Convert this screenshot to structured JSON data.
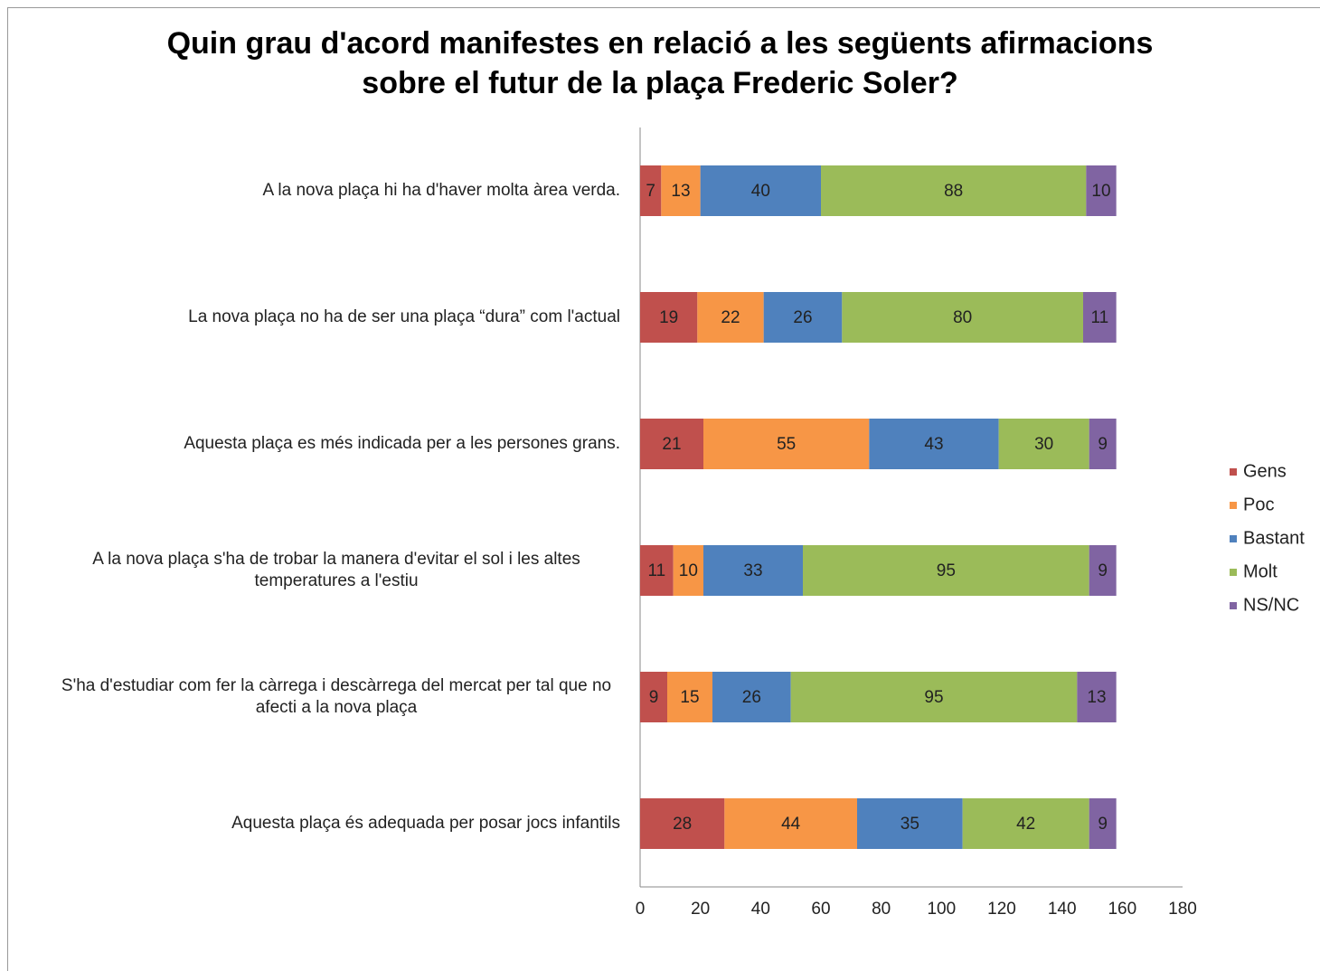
{
  "chart_data": {
    "type": "stacked-bar-horizontal",
    "title": "Quin grau d'acord manifestes en relació a les següents afirmacions sobre el futur de la plaça Frederic Soler?",
    "categories": [
      "A la nova plaça hi ha d'haver  molta àrea verda.",
      "La nova plaça no ha de ser una plaça “dura” com l'actual",
      "Aquesta plaça es més indicada per a les persones grans.",
      "A la nova plaça s'ha de trobar la manera d'evitar el sol i les altes temperatures a l'estiu",
      "S'ha d'estudiar com fer la càrrega i descàrrega del mercat per tal que no afecti a la nova plaça",
      "Aquesta plaça és adequada per posar jocs infantils"
    ],
    "series": [
      {
        "name": "Gens",
        "color": "#c0504d",
        "values": [
          7,
          19,
          21,
          11,
          9,
          28
        ]
      },
      {
        "name": "Poc",
        "color": "#f79646",
        "values": [
          13,
          22,
          55,
          10,
          15,
          44
        ]
      },
      {
        "name": "Bastant",
        "color": "#4f81bd",
        "values": [
          40,
          26,
          43,
          33,
          26,
          35
        ]
      },
      {
        "name": "Molt",
        "color": "#9bbb59",
        "values": [
          88,
          80,
          30,
          95,
          95,
          42
        ]
      },
      {
        "name": "NS/NC",
        "color": "#8064a2",
        "values": [
          10,
          11,
          9,
          9,
          13,
          9
        ]
      }
    ],
    "xlim": [
      0,
      180
    ],
    "xticks": [
      0,
      20,
      40,
      60,
      80,
      100,
      120,
      140,
      160,
      180
    ],
    "legend": "right"
  }
}
